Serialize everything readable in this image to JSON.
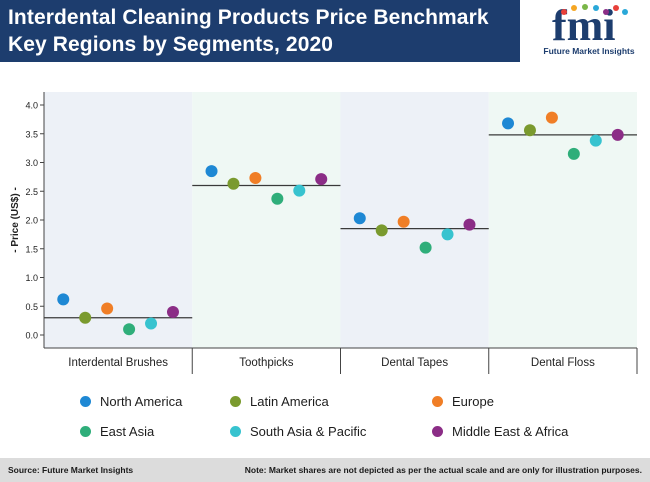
{
  "header": {
    "title_line1": "Interdental Cleaning Products Price Benchmark",
    "title_line2": "Key Regions by Segments, 2020",
    "logo_text": "fmi",
    "logo_subtitle": "Future Market Insights"
  },
  "colors": {
    "title_bar": "#1d3d6e",
    "panel_even": "#edf1f7",
    "panel_odd": "#eff8f4",
    "benchmark_line": "#3a3a3a"
  },
  "footer": {
    "source": "Source: Future Market Insights",
    "note": "Note: Market shares are not depicted as per the actual scale and are only for illustration purposes."
  },
  "chart_data": {
    "type": "scatter",
    "title": "Interdental Cleaning Products Price Benchmark Key Regions by Segments, 2020",
    "ylabel": "- Price (US$) -",
    "ylim": [
      0,
      4
    ],
    "y_ticks": [
      "0.0",
      "0.5",
      "1.0",
      "1.5",
      "2.0",
      "2.5",
      "3.0",
      "3.5",
      "4.0"
    ],
    "categories": [
      "Interdental Brushes",
      "Toothpicks",
      "Dental Tapes",
      "Dental Floss"
    ],
    "benchmarks": [
      0.3,
      2.6,
      1.85,
      3.48
    ],
    "series": [
      {
        "name": "North America",
        "color": "#1e88d4",
        "values": [
          0.62,
          2.85,
          2.03,
          3.68
        ]
      },
      {
        "name": "Latin America",
        "color": "#7a9a2e",
        "values": [
          0.3,
          2.63,
          1.82,
          3.56
        ]
      },
      {
        "name": "Europe",
        "color": "#f07e26",
        "values": [
          0.46,
          2.73,
          1.97,
          3.78
        ]
      },
      {
        "name": "East Asia",
        "color": "#2fae7a",
        "values": [
          0.1,
          2.37,
          1.52,
          3.15
        ]
      },
      {
        "name": "South Asia & Pacific",
        "color": "#37c3cf",
        "values": [
          0.2,
          2.51,
          1.75,
          3.38
        ]
      },
      {
        "name": "Middle East & Africa",
        "color": "#8b2d86",
        "values": [
          0.4,
          2.71,
          1.92,
          3.48
        ]
      }
    ],
    "legend_position": "bottom",
    "grid": false
  }
}
